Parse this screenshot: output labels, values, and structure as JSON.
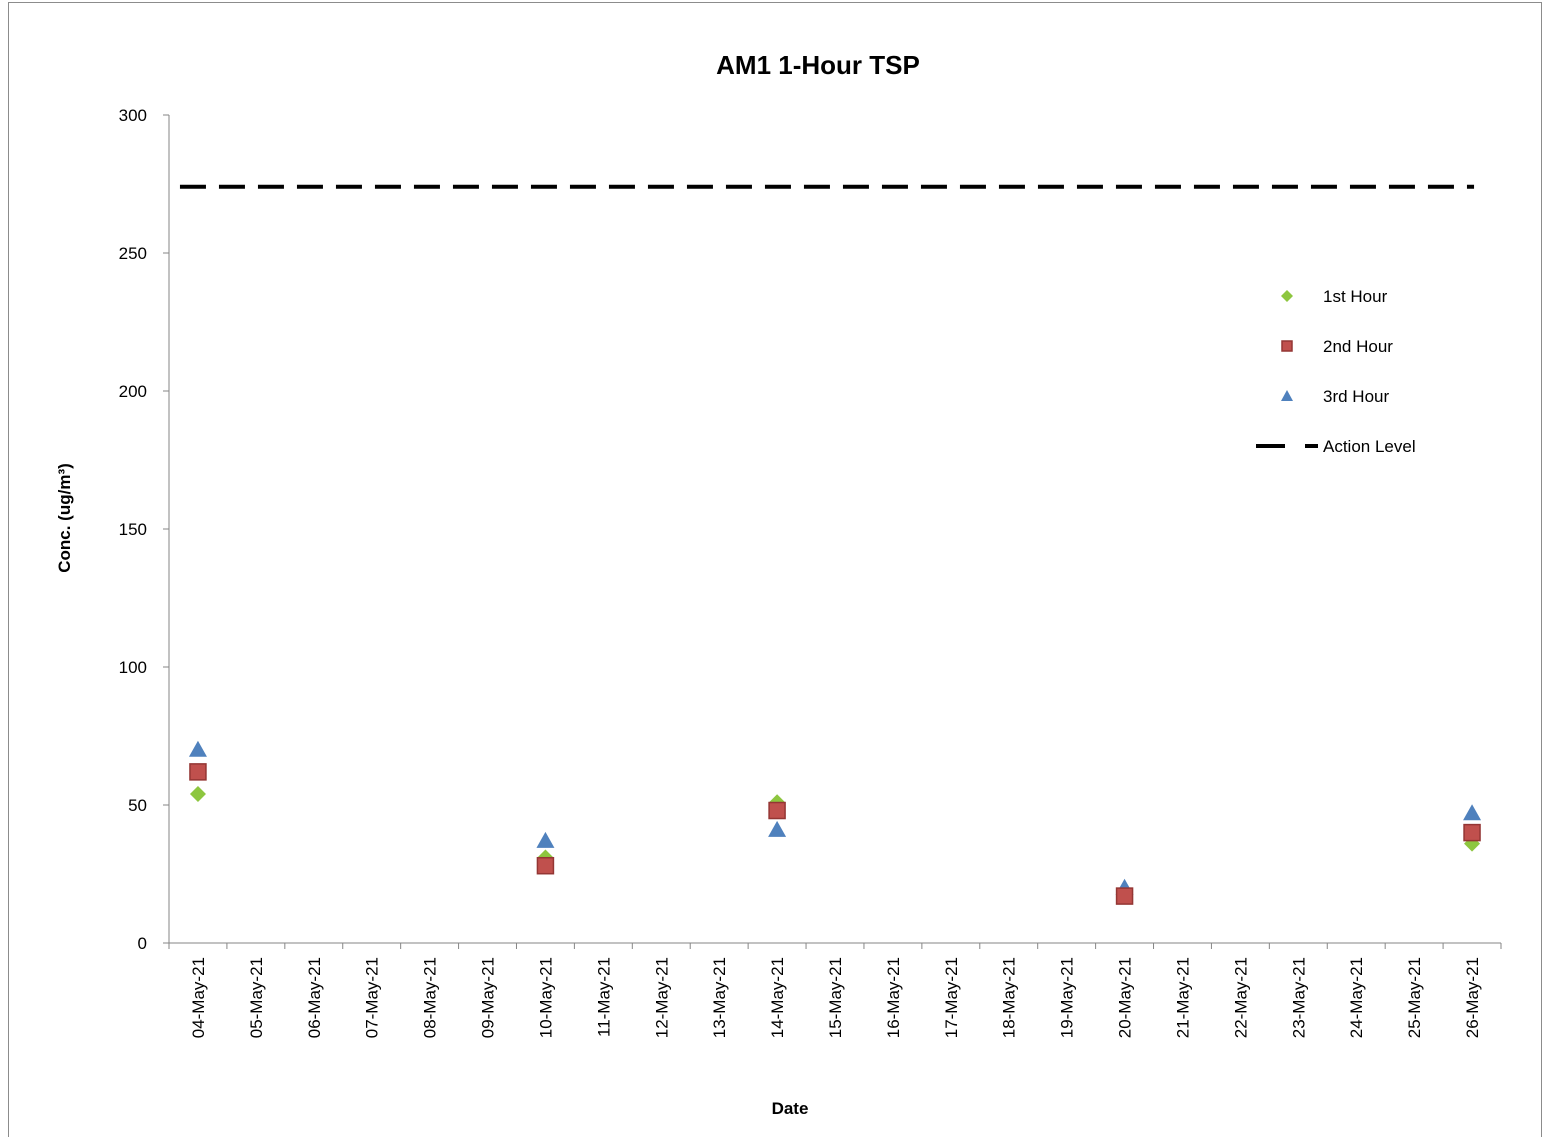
{
  "chart_data": {
    "type": "scatter",
    "title": "AM1 1-Hour TSP",
    "xlabel": "Date",
    "ylabel": "Conc. (ug/m³)",
    "ylim": [
      0,
      300
    ],
    "yticks": [
      0,
      50,
      100,
      150,
      200,
      250,
      300
    ],
    "categories": [
      "04-May-21",
      "05-May-21",
      "06-May-21",
      "07-May-21",
      "08-May-21",
      "09-May-21",
      "10-May-21",
      "11-May-21",
      "12-May-21",
      "13-May-21",
      "14-May-21",
      "15-May-21",
      "16-May-21",
      "17-May-21",
      "18-May-21",
      "19-May-21",
      "20-May-21",
      "21-May-21",
      "22-May-21",
      "23-May-21",
      "24-May-21",
      "25-May-21",
      "26-May-21"
    ],
    "series": [
      {
        "name": "1st Hour",
        "marker": "diamond",
        "color": "#8dc63f",
        "points": [
          [
            "04-May-21",
            54
          ],
          [
            "10-May-21",
            31
          ],
          [
            "14-May-21",
            51
          ],
          [
            "20-May-21",
            17
          ],
          [
            "26-May-21",
            36
          ]
        ]
      },
      {
        "name": "2nd Hour",
        "marker": "square",
        "color": "#c0504d",
        "points": [
          [
            "04-May-21",
            62
          ],
          [
            "10-May-21",
            28
          ],
          [
            "14-May-21",
            48
          ],
          [
            "20-May-21",
            17
          ],
          [
            "26-May-21",
            40
          ]
        ]
      },
      {
        "name": "3rd Hour",
        "marker": "triangle",
        "color": "#4f81bd",
        "points": [
          [
            "04-May-21",
            70
          ],
          [
            "10-May-21",
            37
          ],
          [
            "14-May-21",
            41
          ],
          [
            "20-May-21",
            20
          ],
          [
            "26-May-21",
            47
          ]
        ]
      },
      {
        "name": "Action Level",
        "marker": "dashed-line",
        "color": "#000000",
        "points": [
          [
            "04-May-21",
            274
          ],
          [
            "26-May-21",
            274
          ]
        ]
      }
    ],
    "grid": false,
    "legend_position": "right"
  }
}
